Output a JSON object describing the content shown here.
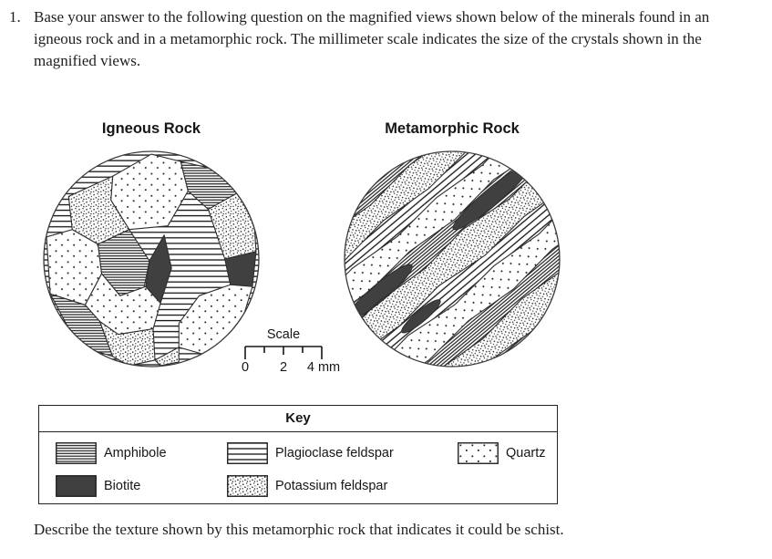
{
  "question": {
    "number": "1.",
    "text": "Base your answer to the following question on the magnified views shown below of the minerals found in an igneous rock and in a metamorphic rock. The millimeter scale indicates the size of the crystals shown in the magnified views."
  },
  "figures": {
    "igneous_title": "Igneous Rock",
    "metamorphic_title": "Metamorphic Rock",
    "igneous_texture": "interlocking equant crystals, random orientation",
    "metamorphic_texture": "foliated mineral bands aligned diagonally"
  },
  "scale": {
    "title": "Scale",
    "labels": [
      "0",
      "2",
      "4 mm"
    ],
    "unit": "mm",
    "range_mm": [
      0,
      4
    ]
  },
  "key": {
    "title": "Key",
    "items": [
      {
        "label": "Amphibole",
        "pattern": "tight-horizontal-lines"
      },
      {
        "label": "Biotite",
        "pattern": "solid-dark-gray"
      },
      {
        "label": "Plagioclase feldspar",
        "pattern": "wide-horizontal-lines"
      },
      {
        "label": "Potassium feldspar",
        "pattern": "dense-stipple-dots"
      },
      {
        "label": "Quartz",
        "pattern": "sparse-dots"
      }
    ]
  },
  "prompt": "Describe the texture shown by this metamorphic rock that indicates it could be schist.",
  "colors": {
    "ink": "#1f1f1f",
    "biotite": "#404040",
    "background": "#ffffff"
  }
}
